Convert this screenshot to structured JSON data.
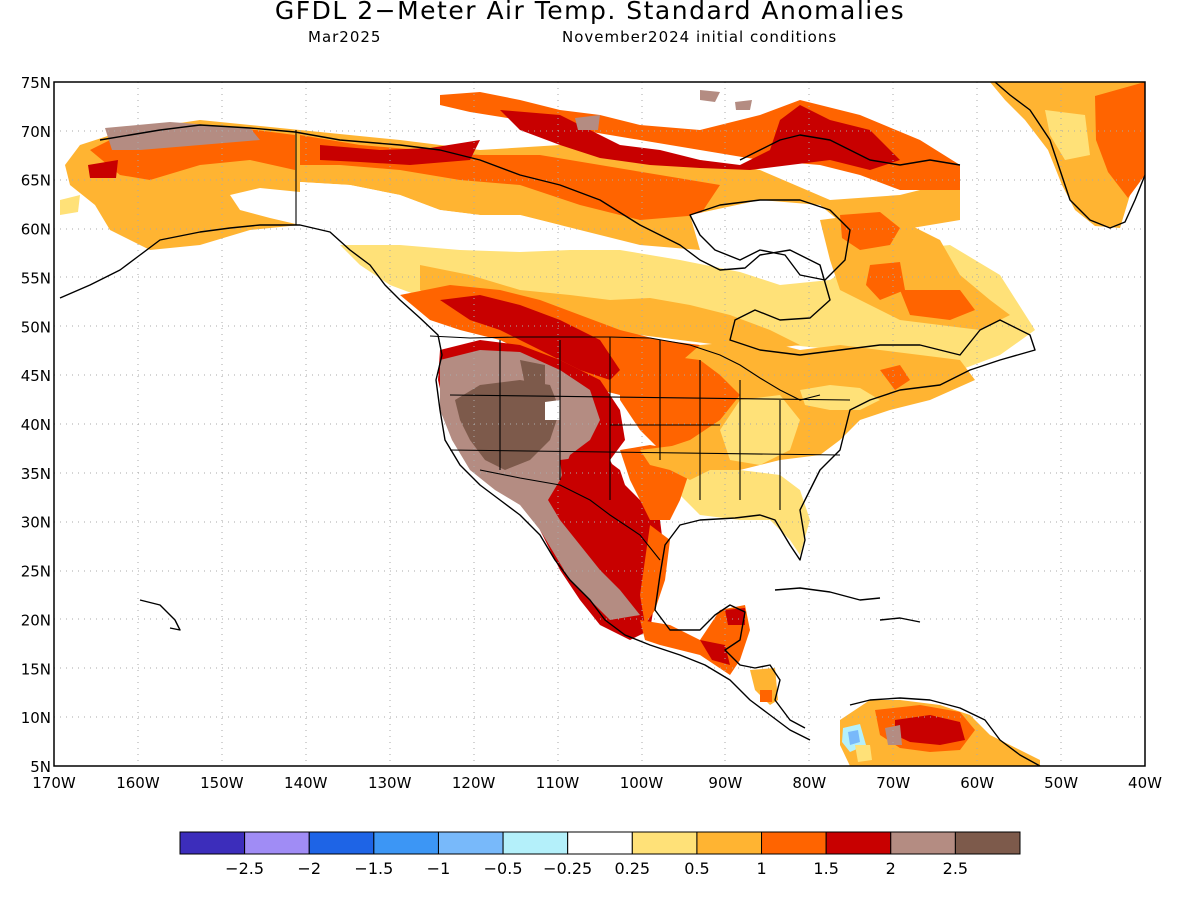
{
  "title": "GFDL 2−Meter Air Temp. Standard Anomalies",
  "subtitle_left": "Mar2025",
  "subtitle_right": "November2024 initial conditions",
  "map": {
    "lat_labels": [
      "75N",
      "70N",
      "65N",
      "60N",
      "55N",
      "50N",
      "45N",
      "40N",
      "35N",
      "30N",
      "25N",
      "20N",
      "15N",
      "10N",
      "5N"
    ],
    "lon_labels": [
      "170W",
      "160W",
      "150W",
      "140W",
      "130W",
      "120W",
      "110W",
      "100W",
      "90W",
      "80W",
      "70W",
      "60W",
      "50W",
      "40W"
    ],
    "lat_range": [
      5,
      75
    ],
    "lon_range": [
      -170,
      -40
    ]
  },
  "colorbar": {
    "colors": [
      "#3c2dbb",
      "#a08cf5",
      "#1e64e6",
      "#3c96f5",
      "#78b9fa",
      "#b4f0fa",
      "#ffffff",
      "#ffe178",
      "#ffb432",
      "#ff6400",
      "#c80000",
      "#b48c82",
      "#7d5a4b"
    ],
    "labels": [
      "−2.5",
      "−2",
      "−1.5",
      "−1",
      "−0.5",
      "−0.25",
      "0.25",
      "0.5",
      "1",
      "1.5",
      "2",
      "2.5"
    ]
  },
  "colors": {
    "land_outline": "#000000",
    "grid": "#aaaaaa"
  }
}
